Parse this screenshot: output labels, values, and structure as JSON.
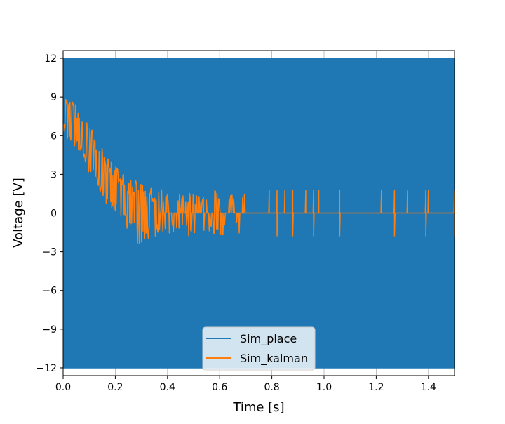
{
  "chart_data": {
    "type": "line",
    "title": "",
    "xlabel": "Time [s]",
    "ylabel": "Voltage [V]",
    "xlim": [
      0,
      1.5
    ],
    "ylim": [
      -12.6,
      12.6
    ],
    "xticks": [
      "0.0",
      "0.2",
      "0.4",
      "0.6",
      "0.8",
      "1.0",
      "1.2",
      "1.4"
    ],
    "xtick_values": [
      0,
      0.2,
      0.4,
      0.6,
      0.8,
      1.0,
      1.2,
      1.4
    ],
    "yticks": [
      "12",
      "9",
      "6",
      "3",
      "0",
      "−3",
      "−6",
      "−9",
      "−12"
    ],
    "ytick_values": [
      12,
      9,
      6,
      3,
      0,
      -3,
      -6,
      -9,
      -12
    ],
    "legend_placement": "lower center",
    "series": [
      {
        "name": "Sim_place",
        "color": "#1f77b4",
        "description_values": {
          "levels": [
            -12,
            12
          ],
          "switching": "dense PWM between -12 and 12 over 0 to 1.5 s"
        }
      },
      {
        "name": "Sim_kalman",
        "color": "#ff7f0e",
        "envelope": {
          "t": [
            0.0,
            0.05,
            0.1,
            0.15,
            0.2,
            0.25,
            0.3,
            0.35,
            0.4,
            0.5,
            0.6,
            0.7
          ],
          "upper": [
            9.3,
            8.5,
            7.0,
            5.0,
            3.7,
            2.8,
            2.4,
            2.0,
            1.8,
            1.8,
            1.8,
            1.8
          ],
          "lower": [
            6.0,
            5.0,
            3.0,
            1.0,
            0.0,
            -1.5,
            -2.8,
            -2.0,
            -1.8,
            -1.8,
            -1.8,
            -1.8
          ]
        },
        "settled_value": 0,
        "spike_times": [
          0.79,
          0.82,
          0.85,
          0.88,
          0.93,
          0.96,
          0.98,
          1.06,
          1.22,
          1.27,
          1.32,
          1.39,
          1.4,
          1.5
        ],
        "spike_amplitude": 1.8
      }
    ]
  }
}
